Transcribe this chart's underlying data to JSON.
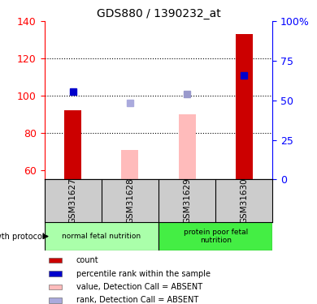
{
  "title": "GDS880 / 1390232_at",
  "samples": [
    "GSM31627",
    "GSM31628",
    "GSM31629",
    "GSM31630"
  ],
  "ylim_left": [
    55,
    140
  ],
  "ylim_right": [
    0,
    100
  ],
  "left_yticks": [
    60,
    80,
    100,
    120,
    140
  ],
  "right_yticks": [
    0,
    25,
    50,
    75,
    100
  ],
  "right_yticklabels": [
    "0",
    "25",
    "50",
    "75",
    "100%"
  ],
  "bar_values": [
    92,
    null,
    null,
    133
  ],
  "absent_bar_values": [
    null,
    71,
    90,
    null
  ],
  "absent_bar_color": "#ffbbbb",
  "rank_markers": [
    102,
    null,
    101,
    111
  ],
  "rank_marker_colors": [
    "#0000cc",
    null,
    "#9999cc",
    "#0000cc"
  ],
  "rank_absent_markers": [
    null,
    96,
    null,
    null
  ],
  "rank_absent_color": "#aaaadd",
  "groups": [
    {
      "label": "normal fetal nutrition",
      "samples": [
        0,
        1
      ],
      "color": "#aaffaa"
    },
    {
      "label": "protein poor fetal\nnutrition",
      "samples": [
        2,
        3
      ],
      "color": "#44ee44"
    }
  ],
  "growth_protocol_label": "growth protocol",
  "legend_items": [
    {
      "label": "count",
      "color": "#cc0000"
    },
    {
      "label": "percentile rank within the sample",
      "color": "#0000cc"
    },
    {
      "label": "value, Detection Call = ABSENT",
      "color": "#ffbbbb"
    },
    {
      "label": "rank, Detection Call = ABSENT",
      "color": "#aaaadd"
    }
  ],
  "dotted_lines": [
    80,
    100,
    120
  ],
  "bar_width": 0.3,
  "marker_size": 6
}
